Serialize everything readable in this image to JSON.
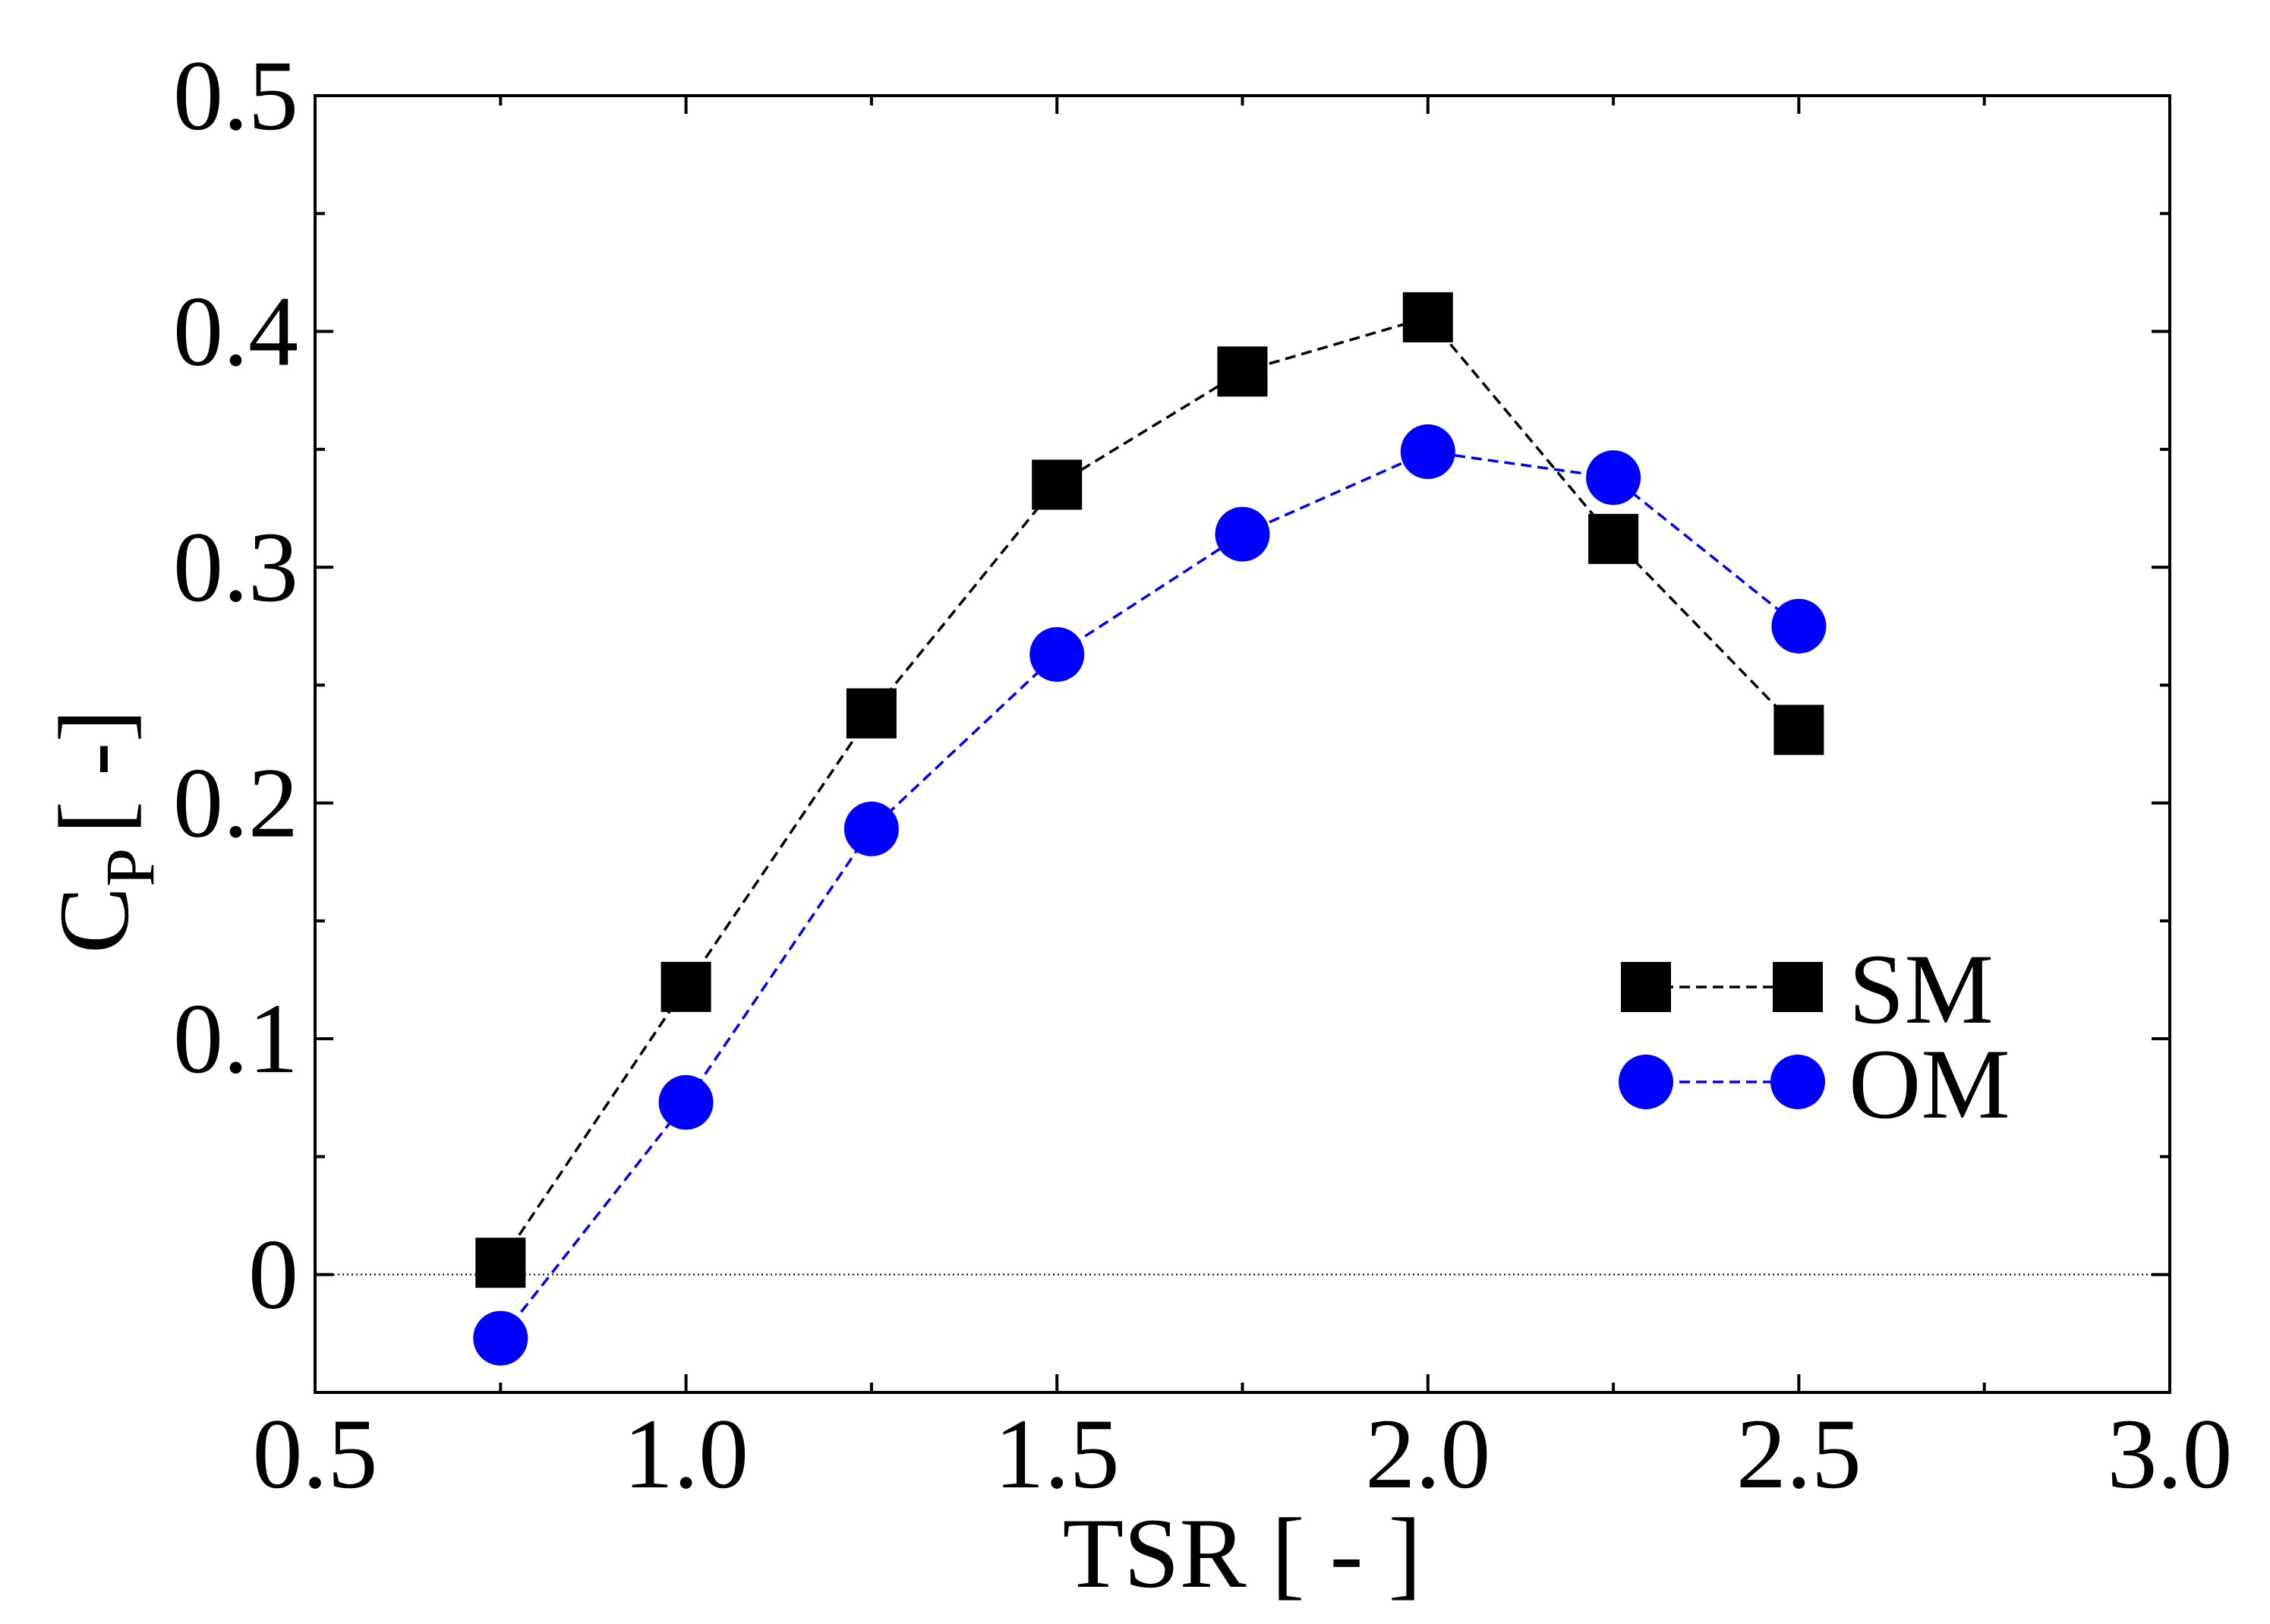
{
  "chart_data": {
    "type": "line",
    "title": "",
    "xlabel": "TSR [ - ]",
    "ylabel": "C",
    "ylabel_subscript": "P",
    "ylabel_suffix": "[ -]",
    "xlim": [
      0.5,
      3.0
    ],
    "ylim": [
      -0.05,
      0.5
    ],
    "xticks": [
      0.5,
      1.0,
      1.5,
      2.0,
      2.5,
      3.0
    ],
    "xtick_labels": [
      "0.5",
      "1.0",
      "1.5",
      "2.0",
      "2.5",
      "3.0"
    ],
    "yticks": [
      0,
      0.1,
      0.2,
      0.3,
      0.4,
      0.5
    ],
    "ytick_labels": [
      "0",
      "0.1",
      "0.2",
      "0.3",
      "0.4",
      "0.5"
    ],
    "x_minor_step": 0.25,
    "y_minor_step": 0.05,
    "zero_line": true,
    "grid": false,
    "legend_position": "center-right",
    "series": [
      {
        "name": "SM",
        "marker": "square",
        "color": "#000000",
        "line_style": "dashed",
        "x": [
          0.75,
          1.0,
          1.25,
          1.5,
          1.75,
          2.0,
          2.25,
          2.5
        ],
        "y": [
          0.005,
          0.122,
          0.238,
          0.335,
          0.383,
          0.406,
          0.312,
          0.231
        ]
      },
      {
        "name": "OM",
        "marker": "circle",
        "color": "#0000ff",
        "line_style": "dashed",
        "x": [
          0.75,
          1.0,
          1.25,
          1.5,
          1.75,
          2.0,
          2.25,
          2.5
        ],
        "y": [
          -0.027,
          0.073,
          0.189,
          0.263,
          0.314,
          0.349,
          0.338,
          0.275
        ]
      }
    ]
  }
}
